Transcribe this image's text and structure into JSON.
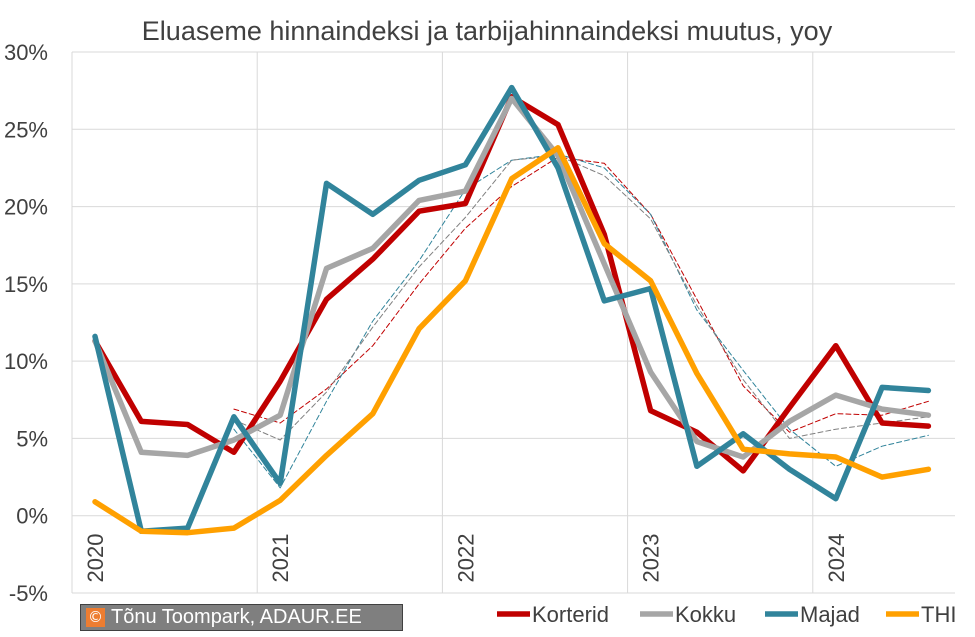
{
  "chart_data": {
    "type": "line",
    "title": "Eluaseme hinnaindeksi ja tarbijahinnaindeksi muutus, yoy",
    "ylim": [
      -5,
      30
    ],
    "y_ticks": [
      "-5%",
      "0%",
      "5%",
      "10%",
      "15%",
      "20%",
      "25%",
      "30%"
    ],
    "y_tick_values": [
      -5,
      0,
      5,
      10,
      15,
      20,
      25,
      30
    ],
    "x_tick_labels": [
      "2020",
      "2021",
      "2022",
      "2023",
      "2024"
    ],
    "x_tick_quarters": [
      0,
      4,
      8,
      12,
      16
    ],
    "x_quarters": [
      0,
      1,
      2,
      3,
      4,
      5,
      6,
      7,
      8,
      9,
      10,
      11,
      12,
      13,
      14,
      15,
      16,
      17,
      18
    ],
    "grid": true,
    "legend_position": "bottom-right",
    "series": [
      {
        "name": "Korterid",
        "color": "#c00000",
        "style": "solid",
        "values": [
          11.3,
          6.1,
          5.9,
          4.1,
          8.7,
          14.0,
          16.6,
          19.7,
          20.2,
          27.1,
          25.3,
          18.2,
          6.8,
          5.4,
          2.9,
          7.0,
          11.0,
          6.0,
          5.8
        ]
      },
      {
        "name": "Kokku",
        "color": "#a6a6a6",
        "style": "solid",
        "values": [
          11.3,
          4.1,
          3.9,
          4.9,
          6.5,
          16.0,
          17.3,
          20.4,
          21.0,
          27.0,
          23.3,
          16.3,
          9.3,
          4.8,
          3.8,
          6.1,
          7.8,
          6.9,
          6.5
        ]
      },
      {
        "name": "Majad",
        "color": "#31849b",
        "style": "solid",
        "values": [
          11.6,
          -1.0,
          -0.8,
          6.4,
          2.1,
          21.5,
          19.5,
          21.7,
          22.7,
          27.7,
          22.5,
          13.9,
          14.7,
          3.2,
          5.3,
          3.0,
          1.1,
          8.3,
          8.1
        ]
      },
      {
        "name": "THI",
        "color": "#ffa000",
        "style": "solid",
        "values": [
          0.9,
          -1.0,
          -1.1,
          -0.8,
          1.0,
          3.9,
          6.6,
          12.1,
          15.2,
          21.8,
          23.8,
          17.6,
          15.2,
          9.2,
          4.3,
          4.0,
          3.8,
          2.5,
          3.0
        ]
      },
      {
        "color": "#c00000",
        "style": "dashed",
        "start": 3,
        "values": [
          6.9,
          6.0,
          8.2,
          11.0,
          15.0,
          18.6,
          21.3,
          23.2,
          22.8,
          19.5,
          14.0,
          8.4,
          5.4,
          6.6,
          6.5,
          7.4
        ]
      },
      {
        "color": "#31849b",
        "style": "dashed",
        "start": 3,
        "values": [
          5.6,
          1.8,
          7.4,
          12.6,
          16.5,
          21.1,
          23.0,
          23.4,
          22.5,
          19.5,
          13.3,
          9.4,
          5.6,
          3.2,
          4.5,
          5.2
        ]
      },
      {
        "color": "#808080",
        "style": "dashed",
        "start": 3,
        "values": [
          6.2,
          4.9,
          8.0,
          12.2,
          16.1,
          19.3,
          23.0,
          23.3,
          22.0,
          19.2,
          13.6,
          8.8,
          5.0,
          5.6,
          6.0,
          6.4
        ]
      }
    ]
  },
  "credit": {
    "icon": "©",
    "text": "Tõnu Toompark, ADAUR.EE"
  },
  "colors": {
    "gridline": "#d9d9d9",
    "text": "#404040"
  }
}
